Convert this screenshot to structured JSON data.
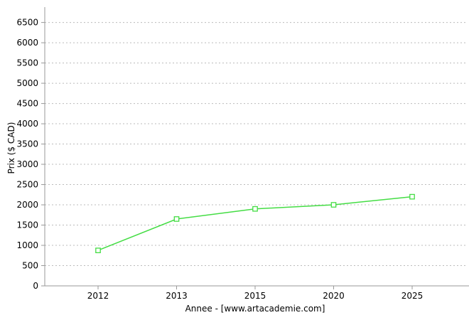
{
  "chart_data": {
    "type": "line",
    "title": "",
    "categories": [
      "2012",
      "2013",
      "2015",
      "2020",
      "2025"
    ],
    "series": [
      {
        "name": "Prix",
        "values": [
          875,
          1650,
          1900,
          2000,
          2200
        ],
        "color": "#44dd44",
        "marker": "open-square",
        "marker_fill": "#ffffff"
      }
    ],
    "xlabel": "Annee - [www.artacademie.com]",
    "ylabel": "Prix ($ CAD)",
    "ylim": [
      0,
      6800
    ],
    "yticks": [
      0,
      500,
      1000,
      1500,
      2000,
      2500,
      3000,
      3500,
      4000,
      4500,
      5000,
      5500,
      6000,
      6500
    ],
    "grid": "horizontal-dotted",
    "legend_position": "none",
    "colors": {
      "background": "#ffffff",
      "line": "#44dd44",
      "grid": "#bbbbbb",
      "axis": "#999999",
      "text": "#000000"
    }
  }
}
